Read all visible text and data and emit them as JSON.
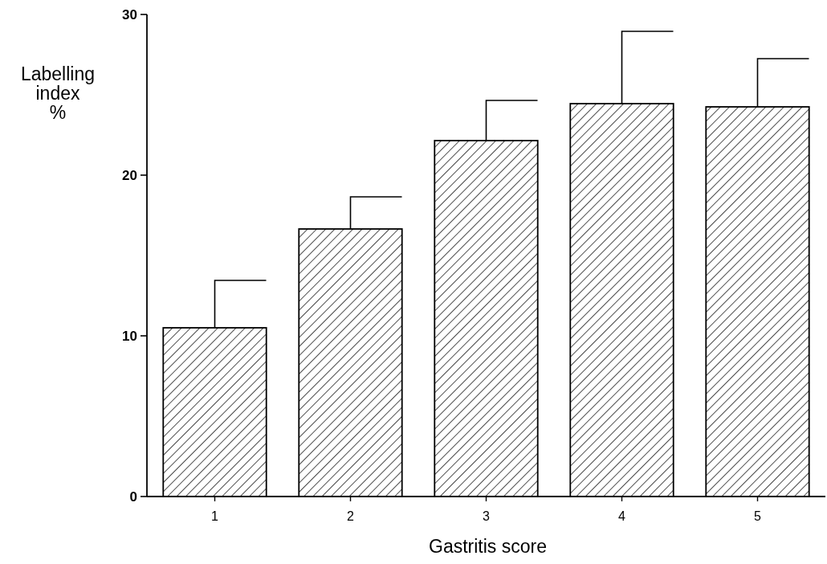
{
  "chart_data": {
    "type": "bar",
    "xlabel": "Gastritis score",
    "ylabel": "Labelling index %",
    "categories": [
      "1",
      "2",
      "3",
      "4",
      "5"
    ],
    "values": [
      10.5,
      16.65,
      22.15,
      24.45,
      24.25
    ],
    "errors": [
      [
        10.5,
        13.45
      ],
      [
        16.65,
        18.65
      ],
      [
        22.15,
        24.65
      ],
      [
        24.45,
        28.95
      ],
      [
        24.25,
        27.25
      ]
    ],
    "color": "#000000",
    "ylim": [
      0,
      30
    ],
    "yticks": [
      0,
      10,
      20,
      30
    ],
    "grid": false
  }
}
